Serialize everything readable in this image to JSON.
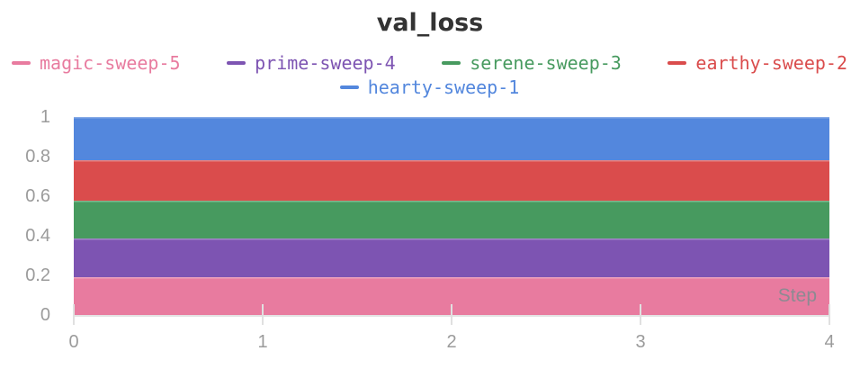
{
  "chart_data": {
    "type": "area",
    "stacked": true,
    "title": "val_loss",
    "xlabel": "Step",
    "ylabel": "",
    "xlim": [
      0,
      4
    ],
    "ylim": [
      0,
      1
    ],
    "grid": false,
    "legend_position": "top",
    "x": [
      0,
      1,
      2,
      3,
      4
    ],
    "xticks": [
      {
        "value": 0,
        "label": "0"
      },
      {
        "value": 1,
        "label": "1"
      },
      {
        "value": 2,
        "label": "2"
      },
      {
        "value": 3,
        "label": "3"
      },
      {
        "value": 4,
        "label": "4"
      }
    ],
    "yticks": [
      {
        "value": 0,
        "label": "0"
      },
      {
        "value": 0.2,
        "label": "0.2"
      },
      {
        "value": 0.4,
        "label": "0.4"
      },
      {
        "value": 0.6,
        "label": "0.6"
      },
      {
        "value": 0.8,
        "label": "0.8"
      },
      {
        "value": 1,
        "label": "1"
      }
    ],
    "series": [
      {
        "name": "magic-sweep-5",
        "color": "#E87B9F",
        "value": 0.19,
        "cumulative_top": 0.19,
        "values": [
          0.19,
          0.19,
          0.19,
          0.19,
          0.19
        ]
      },
      {
        "name": "prime-sweep-4",
        "color": "#7D54B2",
        "value": 0.195,
        "cumulative_top": 0.385,
        "values": [
          0.195,
          0.195,
          0.195,
          0.195,
          0.195
        ]
      },
      {
        "name": "serene-sweep-3",
        "color": "#479A5F",
        "value": 0.193,
        "cumulative_top": 0.578,
        "values": [
          0.193,
          0.193,
          0.193,
          0.193,
          0.193
        ]
      },
      {
        "name": "earthy-sweep-2",
        "color": "#DA4C4C",
        "value": 0.205,
        "cumulative_top": 0.783,
        "values": [
          0.205,
          0.205,
          0.205,
          0.205,
          0.205
        ]
      },
      {
        "name": "hearty-sweep-1",
        "color": "#5387DD",
        "value": 0.217,
        "cumulative_top": 1.0,
        "values": [
          0.217,
          0.217,
          0.217,
          0.217,
          0.217
        ]
      }
    ],
    "legend_rows": [
      [
        "magic-sweep-5",
        "prime-sweep-4",
        "serene-sweep-3",
        "earthy-sweep-2"
      ],
      [
        "hearty-sweep-1"
      ]
    ]
  }
}
